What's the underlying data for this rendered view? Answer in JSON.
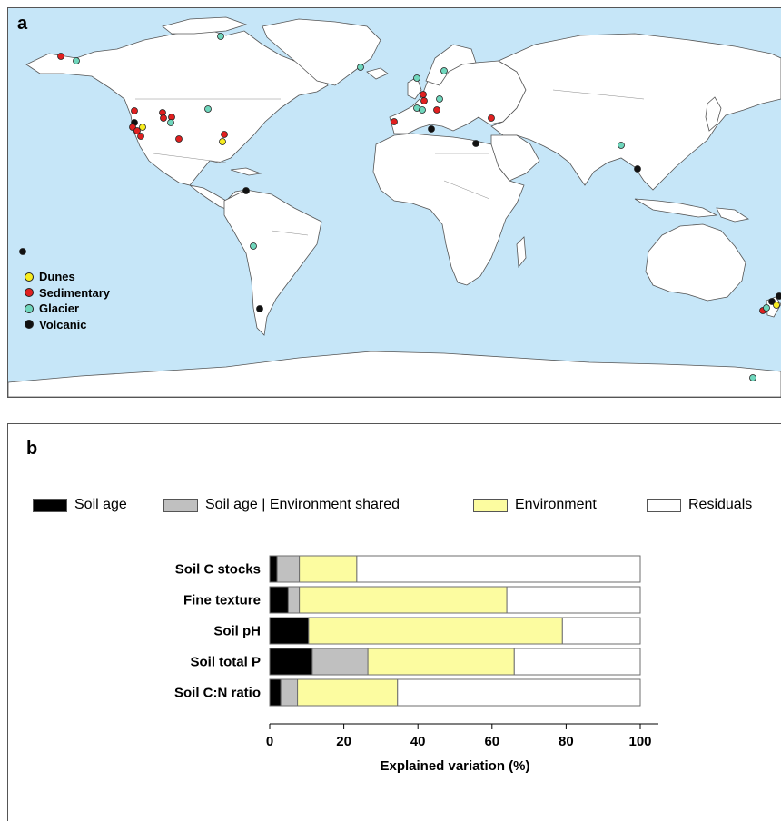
{
  "panel_a": {
    "letter": "a",
    "legend": [
      {
        "label": "Dunes",
        "color": "#f7ec1f"
      },
      {
        "label": "Sedimentary",
        "color": "#e02020"
      },
      {
        "label": "Glacier",
        "color": "#6fd6bc"
      },
      {
        "label": "Volcanic",
        "color": "#111111"
      }
    ],
    "colors": {
      "ocean": "#c6e6f8",
      "land": "#ffffff",
      "border": "#555555"
    }
  },
  "panel_b": {
    "letter": "b",
    "legend": [
      {
        "label": "Soil age",
        "color": "#000000"
      },
      {
        "label": "Soil age | Environment shared",
        "color": "#c0c0c0"
      },
      {
        "label": "Environment",
        "color": "#fcfca0"
      },
      {
        "label": "Residuals",
        "color": "#ffffff"
      }
    ]
  },
  "chart_data": {
    "type": "bar",
    "orientation": "horizontal-stacked",
    "categories": [
      "Soil C stocks",
      "Fine texture",
      "Soil pH",
      "Soil total P",
      "Soil C:N ratio"
    ],
    "series": [
      {
        "name": "Soil age",
        "color": "#000000",
        "values": [
          2,
          5,
          10.5,
          11.5,
          3
        ]
      },
      {
        "name": "Soil age | Environment shared",
        "color": "#c0c0c0",
        "values": [
          6,
          3,
          0,
          15,
          4.5
        ]
      },
      {
        "name": "Environment",
        "color": "#fcfca0",
        "values": [
          15.5,
          56,
          68.5,
          39.5,
          27
        ]
      },
      {
        "name": "Residuals",
        "color": "#ffffff",
        "values": [
          76.5,
          36,
          21,
          34,
          65.5
        ]
      }
    ],
    "xlabel": "Explained variation (%)",
    "ylabel": "",
    "xlim": [
      0,
      100
    ],
    "xticks": [
      0,
      20,
      40,
      60,
      80,
      100
    ],
    "xtick_labels": [
      "0",
      "20",
      "40",
      "60",
      "80",
      "100"
    ],
    "legend_position": "top"
  }
}
